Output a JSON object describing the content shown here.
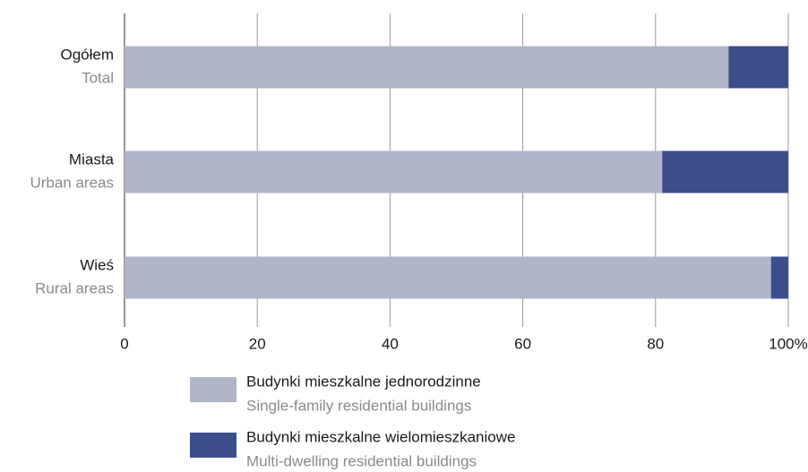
{
  "chart_data": {
    "type": "stacked-bar-horizontal",
    "categories": [
      "Ogółem",
      "Miasta",
      "Wieś"
    ],
    "category_subtitles": [
      "Total",
      "Urban areas",
      "Rural areas"
    ],
    "series": [
      {
        "name": "Budynki mieszkalne jednorodzinne",
        "name_subtitle": "Single-family residential buildings",
        "color": "#b0b5c8",
        "values": [
          91,
          81,
          97.4
        ]
      },
      {
        "name": "Budynki mieszkalne wielomieszkaniowe",
        "name_subtitle": "Multi-dwelling residential buildings",
        "color": "#3c4e8c",
        "values": [
          9,
          19,
          2.6
        ]
      }
    ],
    "xlim": [
      0,
      100
    ],
    "xticks": [
      0,
      20,
      40,
      60,
      80,
      {
        "value": 100,
        "label": "100%"
      }
    ],
    "grid": true
  }
}
